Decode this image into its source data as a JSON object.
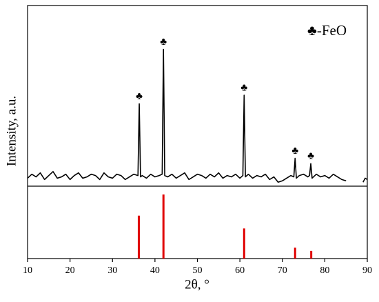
{
  "chart_data": [
    {
      "type": "line",
      "ylabel": "Intensity, a.u.",
      "legend": "upper right",
      "xlim": [
        10,
        90
      ],
      "ylim": [
        -3,
        133
      ],
      "x": [
        10,
        11,
        12,
        13,
        14,
        15,
        16,
        17,
        18,
        19,
        20,
        21,
        22,
        23,
        24,
        25,
        26,
        27,
        28,
        29,
        30,
        31,
        32,
        33,
        34,
        35,
        36.0,
        36.3,
        36.6,
        37,
        38,
        39,
        40,
        41,
        41.7,
        42.0,
        42.3,
        43,
        44,
        45,
        46,
        47,
        48,
        49,
        50,
        51,
        52,
        53,
        54,
        55,
        56,
        57,
        58,
        59,
        60,
        60.7,
        61.0,
        61.3,
        62,
        63,
        64,
        65,
        66,
        67,
        68,
        69,
        70,
        71,
        72,
        72.7,
        73.0,
        73.3,
        74,
        75,
        76,
        76.4,
        76.7,
        77.0,
        78,
        79,
        80,
        81,
        82,
        83,
        84,
        85,
        86,
        89,
        89.5,
        90
      ],
      "series": [
        {
          "name": "♣-FeO",
          "color": "#000000",
          "values": [
            3,
            6,
            4,
            7,
            2,
            5,
            8,
            3,
            4,
            6,
            2,
            5,
            7,
            3,
            4,
            6,
            5,
            2,
            7,
            4,
            3,
            6,
            5,
            2,
            4,
            6,
            5,
            59,
            4,
            5,
            3,
            6,
            4,
            5,
            6,
            100,
            5,
            4,
            6,
            3,
            5,
            7,
            2,
            4,
            6,
            5,
            3,
            6,
            4,
            7,
            3,
            5,
            4,
            6,
            3,
            5,
            65.5,
            4,
            6,
            3,
            5,
            4,
            6,
            2,
            4,
            0,
            1,
            3,
            5,
            4,
            18,
            3,
            5,
            6,
            4,
            5,
            14,
            3,
            6,
            4,
            5,
            3,
            6,
            4,
            2,
            1,
            null,
            0,
            3,
            2
          ]
        }
      ],
      "annotations": [
        {
          "text": "♣",
          "x": 36.3
        },
        {
          "text": "♣",
          "x": 42.0
        },
        {
          "text": "♣",
          "x": 61.0
        },
        {
          "text": "♣",
          "x": 73.0
        },
        {
          "text": "♣",
          "x": 76.7
        }
      ]
    },
    {
      "type": "stem",
      "xlabel": "2θ, °",
      "xlim": [
        10,
        90
      ],
      "ylim": [
        0,
        113
      ],
      "xticks": [
        10,
        20,
        30,
        40,
        50,
        60,
        70,
        80,
        90
      ],
      "color": "#e00000",
      "x": [
        36.2,
        42.0,
        61.0,
        73.0,
        76.8
      ],
      "values": [
        67,
        100,
        47,
        17,
        12
      ]
    }
  ]
}
